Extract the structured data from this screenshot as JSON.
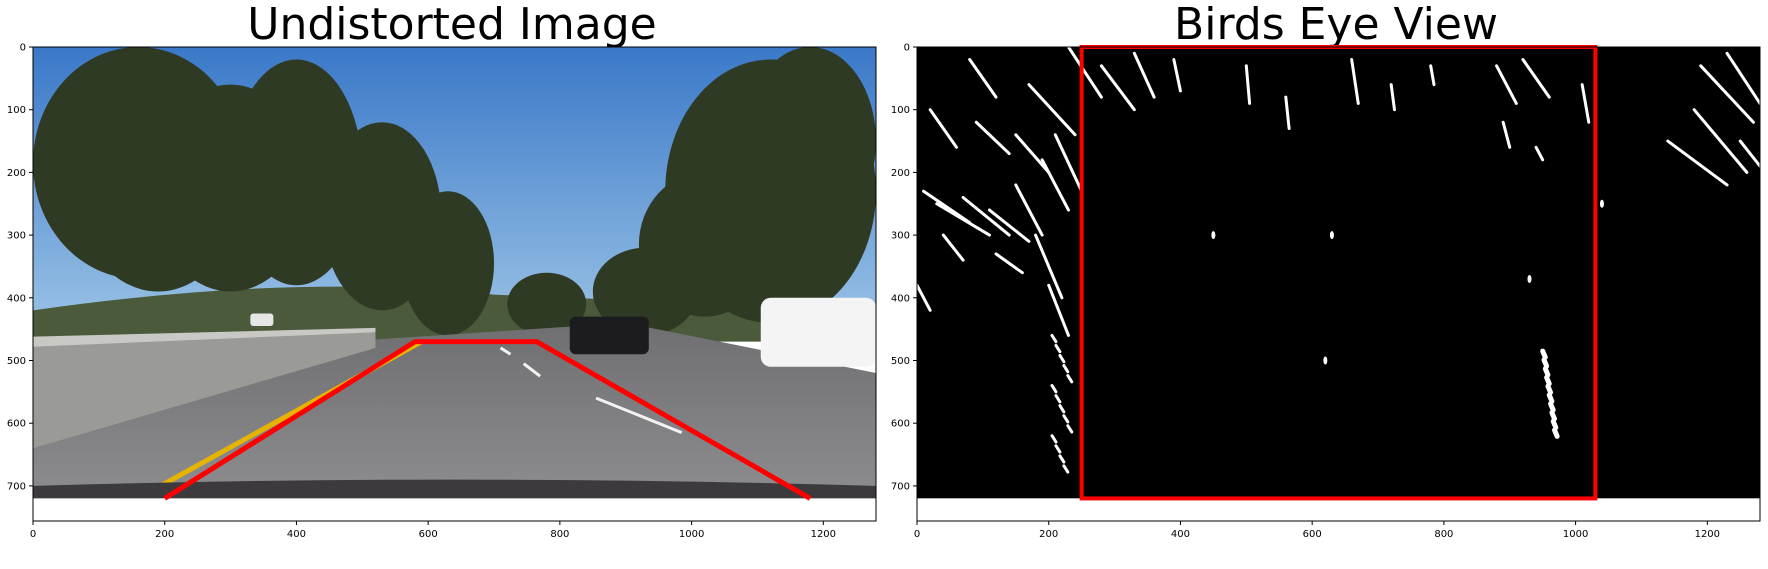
{
  "chart_data": [
    {
      "type": "image",
      "title": "Undistorted Image",
      "xlim": [
        0,
        1280
      ],
      "ylim": [
        0,
        720
      ],
      "xticks": [
        0,
        200,
        400,
        600,
        800,
        1000,
        1200
      ],
      "yticks": [
        0,
        100,
        200,
        300,
        400,
        500,
        600,
        700
      ],
      "grid": false,
      "overlay": {
        "type": "line",
        "color": "#ff0000",
        "points": [
          [
            200,
            720
          ],
          [
            580,
            470
          ],
          [
            765,
            470
          ],
          [
            1180,
            720
          ]
        ]
      },
      "lane_markings": {
        "left_solid_color": "#e6b400",
        "left_solid": [
          [
            185,
            705
          ],
          [
            590,
            470
          ]
        ],
        "right_dashes": [
          [
            [
              855,
              560
            ],
            [
              985,
              615
            ]
          ],
          [
            [
              745,
              505
            ],
            [
              770,
              525
            ]
          ],
          [
            [
              710,
              480
            ],
            [
              725,
              490
            ]
          ]
        ]
      },
      "scene_colors": {
        "sky_top": "#3a78c8",
        "sky_bottom": "#9cc4e6",
        "trees": "#2f3a24",
        "road": "#6f6f72",
        "road_near": "#8d8d90"
      }
    },
    {
      "type": "image",
      "title": "Birds Eye View",
      "xlim": [
        0,
        1280
      ],
      "ylim": [
        0,
        720
      ],
      "xticks": [
        0,
        200,
        400,
        600,
        800,
        1000,
        1200
      ],
      "yticks": [
        0,
        100,
        200,
        300,
        400,
        500,
        600,
        700
      ],
      "grid": false,
      "overlay": {
        "type": "rectangle",
        "color": "#ff0000",
        "x": [
          250,
          1030
        ],
        "y": [
          0,
          720
        ]
      },
      "background": "#000000",
      "foreground": "#ffffff"
    }
  ]
}
